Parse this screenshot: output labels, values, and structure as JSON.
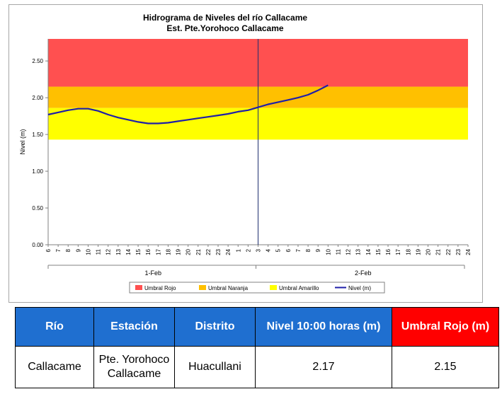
{
  "chart_data": {
    "type": "line",
    "title": "Hidrograma de Niveles del río Callacame",
    "subtitle": "Est. Pte.Yorohoco Callacame",
    "ylabel": "Nivel (m)",
    "ylim": [
      0,
      2.8
    ],
    "yticks": [
      0,
      0.5,
      1.0,
      1.5,
      2.0,
      2.5
    ],
    "ytick_labels": [
      "0.00",
      "0.50",
      "1.00",
      "1.50",
      "2.00",
      "2.50"
    ],
    "hours_day1": [
      "6",
      "7",
      "8",
      "9",
      "10",
      "11",
      "12",
      "13",
      "14",
      "15",
      "16",
      "17",
      "18",
      "19",
      "20",
      "21",
      "22",
      "23",
      "24",
      "1",
      "2"
    ],
    "hours_day2": [
      "3",
      "4",
      "5",
      "6",
      "7",
      "8",
      "9",
      "10",
      "11",
      "12",
      "13",
      "14",
      "15",
      "16",
      "17",
      "18",
      "19",
      "20",
      "21",
      "22",
      "23",
      "24"
    ],
    "dates": [
      "1-Feb",
      "2-Feb"
    ],
    "thresholds": [
      {
        "name": "Umbral Rojo",
        "from": 2.15,
        "to": 2.8,
        "color": "#ff5050"
      },
      {
        "name": "Umbral Naranja",
        "from": 1.86,
        "to": 2.15,
        "color": "#ffc000"
      },
      {
        "name": "Umbral Amarillo",
        "from": 1.43,
        "to": 1.86,
        "color": "#ffff00"
      }
    ],
    "series": [
      {
        "name": "Nivel (m)",
        "color": "#1f1fa8",
        "x": [
          "6",
          "7",
          "8",
          "9",
          "10",
          "11",
          "12",
          "13",
          "14",
          "15",
          "16",
          "17",
          "18",
          "19",
          "20",
          "21",
          "22",
          "23",
          "24",
          "1",
          "2",
          "3",
          "4",
          "5",
          "6",
          "7",
          "8",
          "9",
          "10"
        ],
        "values": [
          1.77,
          1.8,
          1.83,
          1.85,
          1.85,
          1.82,
          1.77,
          1.73,
          1.7,
          1.67,
          1.65,
          1.65,
          1.66,
          1.68,
          1.7,
          1.72,
          1.74,
          1.76,
          1.78,
          1.81,
          1.83,
          1.87,
          1.91,
          1.94,
          1.97,
          2.0,
          2.04,
          2.1,
          2.17
        ]
      }
    ],
    "legend_position": "bottom",
    "grid": false
  },
  "table": {
    "headers": [
      "Río",
      "Estación",
      "Distrito",
      "Nivel 10:00 horas (m)",
      "Umbral Rojo (m)"
    ],
    "row": [
      "Callacame",
      "Pte. Yorohoco Callacame",
      "Huacullani",
      "2.17",
      "2.15"
    ]
  }
}
